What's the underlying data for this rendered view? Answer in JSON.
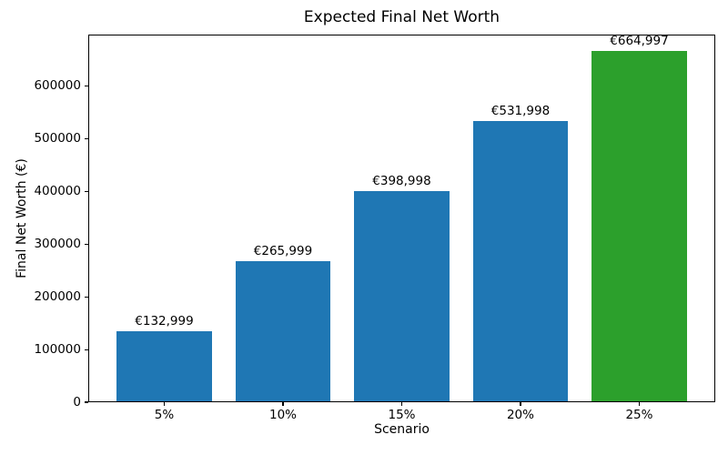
{
  "chart_data": {
    "type": "bar",
    "title": "Expected Final Net Worth",
    "xlabel": "Scenario",
    "ylabel": "Final Net Worth (€)",
    "categories": [
      "5%",
      "10%",
      "15%",
      "20%",
      "25%"
    ],
    "values": [
      132999,
      265999,
      398998,
      531998,
      664997
    ],
    "bar_labels": [
      "€132,999",
      "€265,999",
      "€398,998",
      "€531,998",
      "€664,997"
    ],
    "bar_colors": [
      "#1f77b4",
      "#1f77b4",
      "#1f77b4",
      "#1f77b4",
      "#2ca02c"
    ],
    "yticks": [
      0,
      100000,
      200000,
      300000,
      400000,
      500000,
      600000
    ],
    "ytick_labels": [
      "0",
      "100000",
      "200000",
      "300000",
      "400000",
      "500000",
      "600000"
    ],
    "ylim": [
      0,
      698247
    ],
    "xlim": [
      -0.64,
      4.64
    ],
    "bar_width": 0.8,
    "grid": false,
    "legend": "none",
    "background_color": "#ffffff",
    "text_color": "#000000"
  }
}
